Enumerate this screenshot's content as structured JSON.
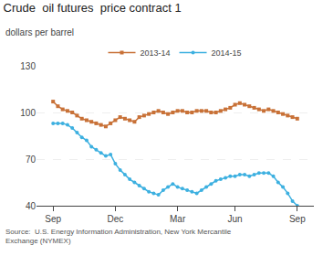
{
  "chart_data": {
    "type": "line",
    "title": "Crude  oil futures  price contract 1",
    "subtitle": "dollars per barrel",
    "annotations": [
      "Source:  U.S. Energy Information Administration, New York Mercantile\nExchange (NYMEX)"
    ],
    "categories": [
      "Sep",
      null,
      null,
      null,
      null,
      null,
      null,
      null,
      null,
      null,
      null,
      null,
      null,
      "Dec",
      null,
      null,
      null,
      null,
      null,
      null,
      null,
      null,
      null,
      null,
      null,
      null,
      "Mar",
      null,
      null,
      null,
      null,
      null,
      null,
      null,
      null,
      null,
      null,
      null,
      "Jun",
      null,
      null,
      null,
      null,
      null,
      null,
      null,
      null,
      null,
      null,
      null,
      null,
      "Sep"
    ],
    "series": [
      {
        "name": "2013-14",
        "color": "#c87137",
        "marker": "square",
        "values": [
          107,
          104,
          102,
          101,
          100,
          98,
          96,
          95,
          94,
          93,
          92,
          91,
          93,
          95,
          97,
          96,
          95,
          94,
          97,
          98,
          99,
          100,
          101,
          100,
          99,
          100,
          101,
          101,
          100,
          100,
          101,
          101,
          101,
          100,
          100,
          101,
          102,
          103,
          105,
          106,
          105,
          104,
          103,
          102,
          101,
          102,
          101,
          100,
          99,
          98,
          97,
          96
        ]
      },
      {
        "name": "2014-15",
        "color": "#3db0e0",
        "marker": "circle",
        "values": [
          93,
          93,
          93,
          92,
          90,
          87,
          84,
          82,
          78,
          76,
          74,
          72,
          73,
          67,
          63,
          60,
          57,
          55,
          53,
          51,
          49,
          48,
          47,
          50,
          52,
          54,
          52,
          51,
          50,
          49,
          48,
          50,
          52,
          54,
          56,
          57,
          58,
          59,
          59,
          60,
          60,
          59,
          60,
          61,
          61,
          61,
          59,
          55,
          52,
          48,
          43,
          40
        ]
      }
    ],
    "ylim": [
      40,
      130
    ],
    "yticks": [
      40,
      70,
      100,
      130
    ],
    "grid": true,
    "legend": "top"
  }
}
